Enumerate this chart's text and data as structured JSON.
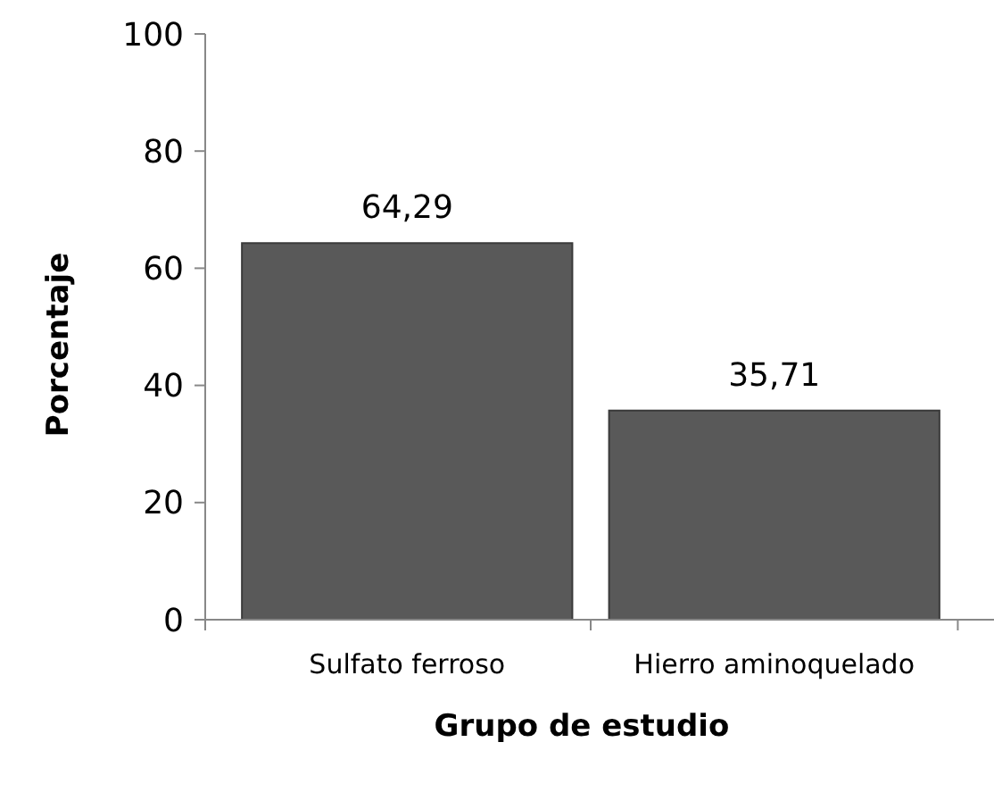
{
  "chart_data": {
    "type": "bar",
    "xlabel": "Grupo de estudio",
    "ylabel": "Porcentaje",
    "categories": [
      "Sulfato ferroso",
      "Hierro aminoquelado"
    ],
    "values": [
      64.29,
      35.71
    ],
    "value_labels": [
      "64,29",
      "35,71"
    ],
    "color": "#595959",
    "ylim": [
      0,
      100
    ],
    "yticks": [
      0,
      20,
      40,
      60,
      80,
      100
    ]
  }
}
